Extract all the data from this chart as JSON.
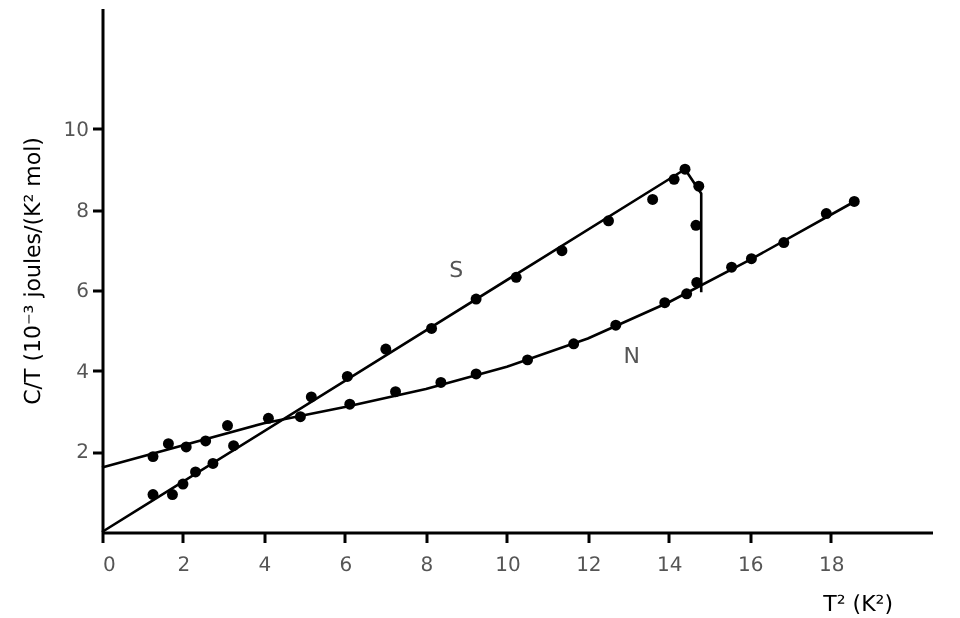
{
  "chart_data": {
    "type": "scatter",
    "xlabel": "T² (K²)",
    "ylabel": "C/T (10⁻³ joules/(K² mol)",
    "xlim": [
      0,
      20.5
    ],
    "ylim": [
      0,
      13
    ],
    "xticks": [
      {
        "value": 0,
        "label": "0"
      },
      2,
      4,
      6,
      8,
      10,
      12,
      14,
      16,
      18
    ],
    "yticks": [
      2,
      4,
      6,
      8,
      10
    ],
    "grid": false,
    "marker": "circle",
    "series": [
      {
        "name": "S",
        "color": "#000000",
        "x": [
          1.26,
          1.74,
          2.0,
          2.31,
          2.74,
          3.25,
          5.17,
          6.06,
          7.01,
          8.14,
          9.24,
          10.23,
          11.36,
          12.51,
          13.6,
          14.13,
          14.4,
          14.74,
          14.67,
          14.69
        ],
        "values": [
          0.93,
          0.93,
          1.19,
          1.49,
          1.7,
          2.14,
          3.35,
          3.86,
          4.54,
          5.05,
          5.78,
          6.32,
          6.98,
          7.72,
          8.25,
          8.75,
          9.0,
          8.58,
          7.61,
          6.19
        ]
      },
      {
        "name": "N",
        "color": "#000000",
        "x": [
          1.26,
          1.64,
          2.08,
          2.56,
          3.1,
          4.11,
          4.9,
          6.12,
          7.25,
          8.37,
          9.24,
          10.51,
          11.65,
          12.69,
          13.9,
          14.44,
          15.55,
          16.04,
          16.84,
          17.89,
          18.58
        ],
        "values": [
          1.87,
          2.19,
          2.11,
          2.26,
          2.64,
          2.82,
          2.86,
          3.17,
          3.48,
          3.71,
          3.92,
          4.27,
          4.67,
          5.13,
          5.69,
          5.91,
          6.57,
          6.78,
          7.18,
          7.9,
          8.2
        ]
      },
      {
        "type": "line",
        "color": "#000000",
        "marker": "none",
        "line_style": "solid",
        "x": [
          0,
          14.4,
          14.8,
          14.8
        ],
        "values": [
          0,
          9.0,
          8.4,
          5.95
        ]
      },
      {
        "type": "line",
        "color": "#000000",
        "marker": "none",
        "line_style": "solid",
        "x": [
          0,
          4,
          6,
          8,
          10,
          12,
          14,
          16,
          18.5
        ],
        "values": [
          1.6,
          2.7,
          3.1,
          3.55,
          4.1,
          4.8,
          5.7,
          6.75,
          8.15
        ]
      }
    ]
  }
}
